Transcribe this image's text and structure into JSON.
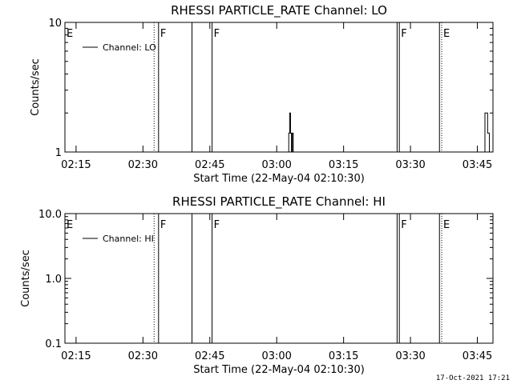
{
  "footer": {
    "timestamp": "17-Oct-2021 17:21"
  },
  "chart_data": [
    {
      "type": "line",
      "title": "RHESSI PARTICLE_RATE Channel: LO",
      "xlabel": "Start Time (22-May-04 02:10:30)",
      "ylabel": "Counts/sec",
      "yscale": "log",
      "ylim": [
        1,
        10
      ],
      "xlim_minutes": [
        2.0,
        98.0
      ],
      "x_ticks": [
        "02:15",
        "02:30",
        "02:45",
        "03:00",
        "03:15",
        "03:30",
        "03:45"
      ],
      "y_ticks": [
        "1",
        "10"
      ],
      "legend": {
        "label": "Channel: LO",
        "placement": "top-left"
      },
      "grid": false,
      "markers": [
        {
          "label": "E",
          "x": 2.0,
          "style": "dotted"
        },
        {
          "label": "",
          "x": 22.0,
          "style": "dotted"
        },
        {
          "label": "F",
          "x": 23.0,
          "style": "solid"
        },
        {
          "label": "",
          "x": 30.5,
          "style": "solid"
        },
        {
          "label": "F",
          "x": 35.0,
          "style": "solid"
        },
        {
          "label": "",
          "x": 76.5,
          "style": "solid"
        },
        {
          "label": "F",
          "x": 77.0,
          "style": "solid"
        },
        {
          "label": "",
          "x": 86.0,
          "style": "solid"
        },
        {
          "label": "E",
          "x": 86.5,
          "style": "dotted"
        },
        {
          "label": "",
          "x": 98.0,
          "style": "dotted"
        }
      ],
      "series": [
        {
          "name": "Channel: LO",
          "x": [
            52.0,
            52.2,
            52.4,
            52.6,
            52.8,
            53.0,
            53.2,
            96.0,
            96.2,
            96.4,
            96.6,
            96.8,
            97.0,
            97.2,
            97.4
          ],
          "y": [
            1,
            1.4,
            2,
            1.4,
            1,
            1.4,
            1,
            1,
            2,
            2,
            2,
            1.4,
            1.4,
            1,
            1
          ]
        }
      ]
    },
    {
      "type": "line",
      "title": "RHESSI PARTICLE_RATE Channel: HI",
      "xlabel": "Start Time (22-May-04 02:10:30)",
      "ylabel": "Counts/sec",
      "yscale": "log",
      "ylim": [
        0.1,
        10
      ],
      "xlim_minutes": [
        2.0,
        98.0
      ],
      "x_ticks": [
        "02:15",
        "02:30",
        "02:45",
        "03:00",
        "03:15",
        "03:30",
        "03:45"
      ],
      "y_ticks": [
        "0.1",
        "1.0",
        "10.0"
      ],
      "legend": {
        "label": "Channel: HI",
        "placement": "top-left"
      },
      "grid": false,
      "markers": [
        {
          "label": "E",
          "x": 2.0,
          "style": "dotted"
        },
        {
          "label": "",
          "x": 22.0,
          "style": "dotted"
        },
        {
          "label": "F",
          "x": 23.0,
          "style": "solid"
        },
        {
          "label": "",
          "x": 30.5,
          "style": "solid"
        },
        {
          "label": "F",
          "x": 35.0,
          "style": "solid"
        },
        {
          "label": "",
          "x": 76.5,
          "style": "solid"
        },
        {
          "label": "F",
          "x": 77.0,
          "style": "solid"
        },
        {
          "label": "",
          "x": 86.0,
          "style": "solid"
        },
        {
          "label": "E",
          "x": 86.5,
          "style": "dotted"
        },
        {
          "label": "",
          "x": 98.0,
          "style": "dotted"
        }
      ],
      "series": [
        {
          "name": "Channel: HI",
          "x": [],
          "y": []
        }
      ]
    }
  ]
}
